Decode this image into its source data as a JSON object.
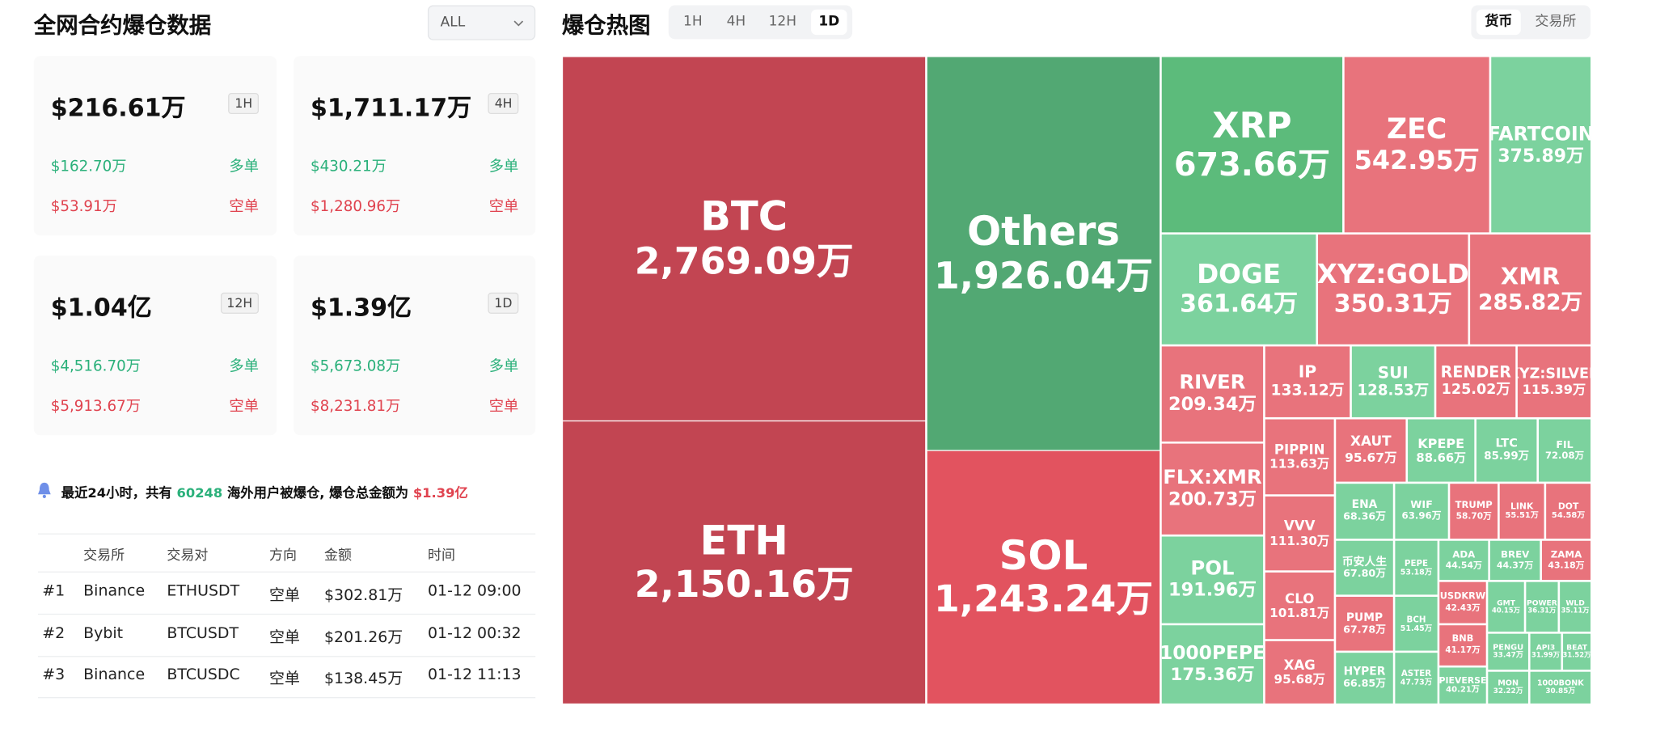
{
  "left": {
    "title": "全网合约爆仓数据",
    "filter": "ALL",
    "cards": [
      {
        "amount": "$216.61万",
        "period": "1H",
        "long_value": "$162.70万",
        "long_label": "多单",
        "short_value": "$53.91万",
        "short_label": "空单"
      },
      {
        "amount": "$1,711.17万",
        "period": "4H",
        "long_value": "$430.21万",
        "long_label": "多单",
        "short_value": "$1,280.96万",
        "short_label": "空单"
      },
      {
        "amount": "$1.04亿",
        "period": "12H",
        "long_value": "$4,516.70万",
        "long_label": "多单",
        "short_value": "$5,913.67万",
        "short_label": "空单"
      },
      {
        "amount": "$1.39亿",
        "period": "1D",
        "long_value": "$5,673.08万",
        "long_label": "多单",
        "short_value": "$8,231.81万",
        "short_label": "空单"
      }
    ],
    "notice": {
      "text_before": "最近24小时，共有",
      "count": "60248",
      "text_middle": "海外用户被爆仓, 爆仓总金额为",
      "total": "$1.39亿"
    },
    "table": {
      "headers": [
        "交易所",
        "交易对",
        "方向",
        "金额",
        "时间"
      ],
      "rows": [
        [
          "#1",
          "Binance",
          "ETHUSDT",
          "空单",
          "$302.81万",
          "01-12 09:00"
        ],
        [
          "#2",
          "Bybit",
          "BTCUSDT",
          "空单",
          "$201.26万",
          "01-12 00:32"
        ],
        [
          "#3",
          "Binance",
          "BTCUSDC",
          "空单",
          "$138.45万",
          "01-12 11:13"
        ]
      ]
    }
  },
  "heatmap": {
    "title": "爆仓热图",
    "periods": [
      {
        "label": "1H"
      },
      {
        "label": "4H"
      },
      {
        "label": "12H"
      },
      {
        "label": "1D",
        "active": true
      }
    ],
    "views": [
      {
        "label": "货币",
        "active": true
      },
      {
        "label": "交易所"
      }
    ],
    "cells": [
      {
        "label": "BTC",
        "value": "2,769.09万",
        "color": "#c24552"
      },
      {
        "label": "ETH",
        "value": "2,150.16万",
        "color": "#c24552"
      },
      {
        "label": "Others",
        "value": "1,926.04万",
        "color": "#52a873"
      },
      {
        "label": "SOL",
        "value": "1,243.24万",
        "color": "#e2535f"
      },
      {
        "label": "XRP",
        "value": "673.66万",
        "color": "#5cbb7b"
      },
      {
        "label": "ZEC",
        "value": "542.95万",
        "color": "#e8737c"
      },
      {
        "label": "FARTCOIN",
        "value": "375.89万",
        "color": "#7cd29e"
      },
      {
        "label": "DOGE",
        "value": "361.64万",
        "color": "#7cd29e"
      },
      {
        "label": "XYZ:GOLD",
        "value": "350.31万",
        "color": "#e8737c"
      },
      {
        "label": "XMR",
        "value": "285.82万",
        "color": "#e8737c"
      },
      {
        "label": "RIVER",
        "value": "209.34万",
        "color": "#e8737c"
      },
      {
        "label": "IP",
        "value": "133.12万",
        "color": "#e8737c"
      },
      {
        "label": "SUI",
        "value": "128.53万",
        "color": "#7cd29e"
      },
      {
        "label": "RENDER",
        "value": "125.02万",
        "color": "#e8737c"
      },
      {
        "label": "XYZ:SILVER",
        "value": "115.39万",
        "color": "#e8737c"
      },
      {
        "label": "FLX:XMR",
        "value": "200.73万",
        "color": "#e8737c"
      },
      {
        "label": "PIPPIN",
        "value": "113.63万",
        "color": "#e8737c"
      },
      {
        "label": "XAUT",
        "value": "95.67万",
        "color": "#e8737c"
      },
      {
        "label": "KPEPE",
        "value": "88.66万",
        "color": "#7cd29e"
      },
      {
        "label": "LTC",
        "value": "85.99万",
        "color": "#7cd29e"
      },
      {
        "label": "FIL",
        "value": "72.08万",
        "color": "#7cd29e"
      },
      {
        "label": "POL",
        "value": "191.96万",
        "color": "#7cd29e"
      },
      {
        "label": "1000PEPE",
        "value": "175.36万",
        "color": "#7cd29e"
      },
      {
        "label": "VVV",
        "value": "111.30万",
        "color": "#e8737c"
      },
      {
        "label": "CLO",
        "value": "101.81万",
        "color": "#e8737c"
      },
      {
        "label": "XAG",
        "value": "95.68万",
        "color": "#e8737c"
      },
      {
        "label": "ENA",
        "value": "68.36万",
        "color": "#7cd29e"
      },
      {
        "label": "WIF",
        "value": "63.96万",
        "color": "#7cd29e"
      },
      {
        "label": "TRUMP",
        "value": "58.70万",
        "color": "#e8737c"
      },
      {
        "label": "LINK",
        "value": "55.51万",
        "color": "#e8737c"
      },
      {
        "label": "DOT",
        "value": "54.58万",
        "color": "#e8737c"
      },
      {
        "label": "币安人生",
        "value": "67.80万",
        "color": "#7cd29e"
      },
      {
        "label": "PEPE",
        "value": "53.18万",
        "color": "#7cd29e"
      },
      {
        "label": "ADA",
        "value": "44.54万",
        "color": "#7cd29e"
      },
      {
        "label": "BREV",
        "value": "44.37万",
        "color": "#7cd29e"
      },
      {
        "label": "ZAMA",
        "value": "43.18万",
        "color": "#e8737c"
      },
      {
        "label": "PUMP",
        "value": "67.78万",
        "color": "#e8737c"
      },
      {
        "label": "BCH",
        "value": "51.45万",
        "color": "#7cd29e"
      },
      {
        "label": "USDKRW",
        "value": "42.43万",
        "color": "#e8737c"
      },
      {
        "label": "GMT",
        "value": "40.15万",
        "color": "#7cd29e"
      },
      {
        "label": "POWER",
        "value": "36.31万",
        "color": "#7cd29e"
      },
      {
        "label": "WLD",
        "value": "35.11万",
        "color": "#7cd29e"
      },
      {
        "label": "HYPER",
        "value": "66.85万",
        "color": "#7cd29e"
      },
      {
        "label": "ASTER",
        "value": "47.73万",
        "color": "#7cd29e"
      },
      {
        "label": "BNB",
        "value": "41.17万",
        "color": "#e8737c"
      },
      {
        "label": "PENGU",
        "value": "33.47万",
        "color": "#7cd29e"
      },
      {
        "label": "API3",
        "value": "31.99万",
        "color": "#7cd29e"
      },
      {
        "label": "BEAT",
        "value": "31.52万",
        "color": "#7cd29e"
      },
      {
        "label": "PIEVERSE",
        "value": "40.21万",
        "color": "#7cd29e"
      },
      {
        "label": "MON",
        "value": "32.22万",
        "color": "#7cd29e"
      },
      {
        "label": "1000BONK",
        "value": "30.85万",
        "color": "#7cd29e"
      }
    ]
  }
}
